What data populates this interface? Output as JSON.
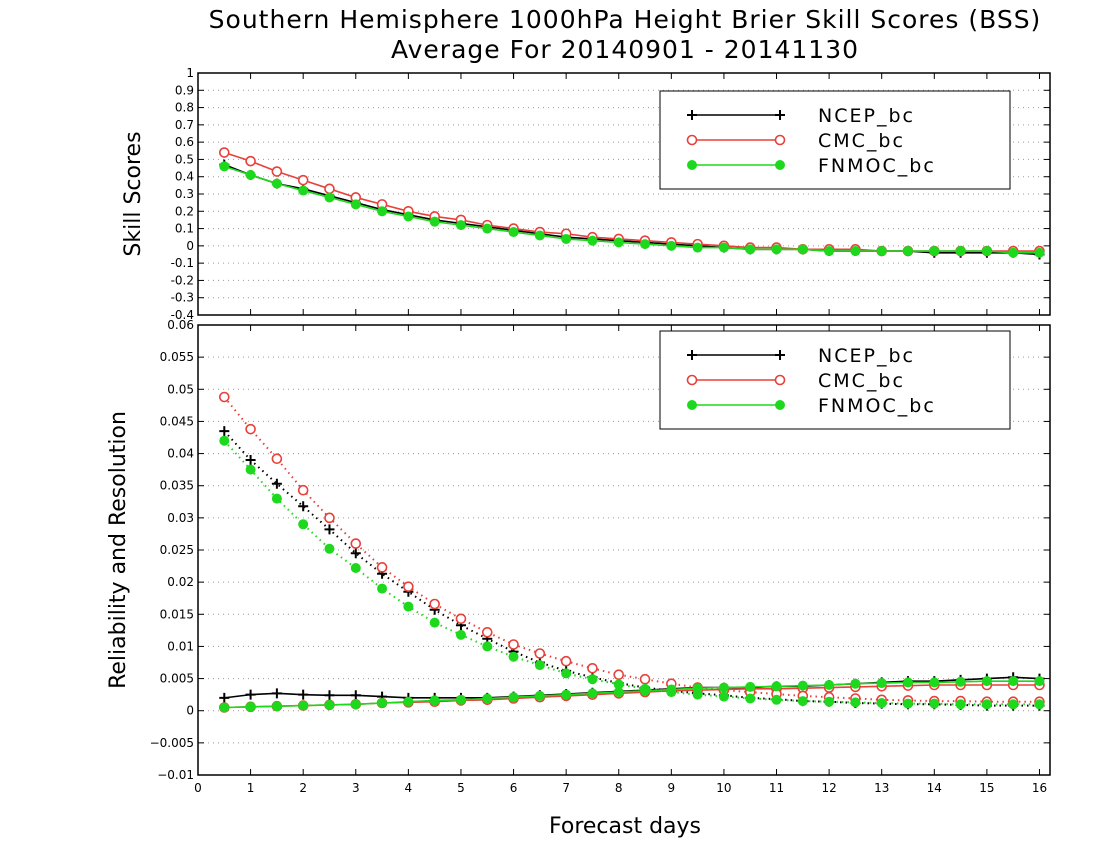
{
  "title": "Southern Hemisphere 1000hPa Height Brier Skill Scores (BSS)",
  "subtitle": "Average For 20140901 - 20141130",
  "xlabel": "Forecast days",
  "colors": {
    "NCEP_bc": "#000000",
    "CMC_bc": "#e8403a",
    "FNMOC_bc": "#1ed81e"
  },
  "chart_data": [
    {
      "type": "line",
      "ylabel": "Skill Scores",
      "xlim": [
        0,
        16.2
      ],
      "ylim": [
        -0.4,
        1
      ],
      "xticks": [
        "0",
        "1",
        "2",
        "3",
        "4",
        "5",
        "6",
        "7",
        "8",
        "9",
        "10",
        "11",
        "12",
        "13",
        "14",
        "15",
        "16"
      ],
      "yticks": [
        "-0.4",
        "-0.3",
        "-0.2",
        "-0.1",
        "0",
        "0.1",
        "0.2",
        "0.3",
        "0.4",
        "0.5",
        "0.6",
        "0.7",
        "0.8",
        "0.9",
        "1"
      ],
      "grid": true,
      "legend_position": "top-right",
      "x": [
        0.5,
        1,
        1.5,
        2,
        2.5,
        3,
        3.5,
        4,
        4.5,
        5,
        5.5,
        6,
        6.5,
        7,
        7.5,
        8,
        8.5,
        9,
        9.5,
        10,
        10.5,
        11,
        11.5,
        12,
        12.5,
        13,
        13.5,
        14,
        14.5,
        15,
        15.5,
        16
      ],
      "series": [
        {
          "name": "NCEP_bc",
          "marker": "plus",
          "linestyle": "solid",
          "values": [
            0.47,
            0.41,
            0.36,
            0.33,
            0.29,
            0.25,
            0.21,
            0.18,
            0.15,
            0.13,
            0.11,
            0.09,
            0.07,
            0.05,
            0.04,
            0.03,
            0.02,
            0.01,
            0.0,
            -0.01,
            -0.02,
            -0.02,
            -0.02,
            -0.03,
            -0.03,
            -0.03,
            -0.03,
            -0.04,
            -0.04,
            -0.04,
            -0.04,
            -0.05
          ]
        },
        {
          "name": "CMC_bc",
          "marker": "open-circle",
          "linestyle": "solid",
          "values": [
            0.54,
            0.49,
            0.43,
            0.38,
            0.33,
            0.28,
            0.24,
            0.2,
            0.17,
            0.15,
            0.12,
            0.1,
            0.08,
            0.07,
            0.05,
            0.04,
            0.03,
            0.02,
            0.01,
            0.0,
            -0.01,
            -0.01,
            -0.02,
            -0.02,
            -0.02,
            -0.03,
            -0.03,
            -0.03,
            -0.03,
            -0.03,
            -0.03,
            -0.03
          ]
        },
        {
          "name": "FNMOC_bc",
          "marker": "filled-circle",
          "linestyle": "solid",
          "values": [
            0.46,
            0.41,
            0.36,
            0.32,
            0.28,
            0.24,
            0.2,
            0.17,
            0.14,
            0.12,
            0.1,
            0.08,
            0.06,
            0.04,
            0.03,
            0.02,
            0.01,
            0.0,
            -0.01,
            -0.01,
            -0.02,
            -0.02,
            -0.02,
            -0.03,
            -0.03,
            -0.03,
            -0.03,
            -0.03,
            -0.03,
            -0.03,
            -0.04,
            -0.04
          ]
        }
      ]
    },
    {
      "type": "line",
      "ylabel": "Reliability and Resolution",
      "xlim": [
        0,
        16.2
      ],
      "ylim": [
        -0.01,
        0.06
      ],
      "xticks": [
        "0",
        "1",
        "2",
        "3",
        "4",
        "5",
        "6",
        "7",
        "8",
        "9",
        "10",
        "11",
        "12",
        "13",
        "14",
        "15",
        "16"
      ],
      "yticks": [
        "−0.01",
        "−0.005",
        "0",
        "0.005",
        "0.01",
        "0.015",
        "0.02",
        "0.025",
        "0.03",
        "0.035",
        "0.04",
        "0.045",
        "0.05",
        "0.055",
        "0.06"
      ],
      "grid": true,
      "legend_position": "top-right",
      "x": [
        0.5,
        1,
        1.5,
        2,
        2.5,
        3,
        3.5,
        4,
        4.5,
        5,
        5.5,
        6,
        6.5,
        7,
        7.5,
        8,
        8.5,
        9,
        9.5,
        10,
        10.5,
        11,
        11.5,
        12,
        12.5,
        13,
        13.5,
        14,
        14.5,
        15,
        15.5,
        16
      ],
      "series": [
        {
          "name": "NCEP_bc",
          "role": "reliability",
          "marker": "plus",
          "linestyle": "solid",
          "values": [
            0.002,
            0.0025,
            0.0027,
            0.0025,
            0.0024,
            0.0024,
            0.0022,
            0.002,
            0.002,
            0.002,
            0.002,
            0.0022,
            0.0024,
            0.0026,
            0.0028,
            0.003,
            0.0032,
            0.0034,
            0.0036,
            0.0036,
            0.0036,
            0.0038,
            0.0038,
            0.004,
            0.0042,
            0.0044,
            0.0046,
            0.0046,
            0.0048,
            0.005,
            0.0052,
            0.005
          ]
        },
        {
          "name": "NCEP_bc",
          "role": "resolution",
          "marker": "plus",
          "linestyle": "dotted",
          "values": [
            0.0435,
            0.039,
            0.0353,
            0.0318,
            0.0282,
            0.0245,
            0.0213,
            0.0185,
            0.0157,
            0.0133,
            0.0112,
            0.0092,
            0.0075,
            0.0062,
            0.0052,
            0.0043,
            0.0036,
            0.0031,
            0.0027,
            0.0024,
            0.002,
            0.0018,
            0.0015,
            0.0014,
            0.0012,
            0.0011,
            0.001,
            0.001,
            0.0009,
            0.0008,
            0.0008,
            0.0008
          ]
        },
        {
          "name": "CMC_bc",
          "role": "reliability",
          "marker": "open-circle",
          "linestyle": "solid",
          "values": [
            0.0005,
            0.0006,
            0.0007,
            0.0008,
            0.0009,
            0.001,
            0.0012,
            0.0013,
            0.0014,
            0.0016,
            0.0017,
            0.0019,
            0.0021,
            0.0023,
            0.0025,
            0.0027,
            0.0029,
            0.0031,
            0.0032,
            0.0033,
            0.0034,
            0.0034,
            0.0035,
            0.0036,
            0.0037,
            0.0038,
            0.0039,
            0.004,
            0.004,
            0.004,
            0.004,
            0.004
          ]
        },
        {
          "name": "CMC_bc",
          "role": "resolution",
          "marker": "open-circle",
          "linestyle": "dotted",
          "values": [
            0.0488,
            0.0438,
            0.0392,
            0.0343,
            0.03,
            0.026,
            0.0223,
            0.0193,
            0.0166,
            0.0143,
            0.0122,
            0.0103,
            0.0089,
            0.0077,
            0.0066,
            0.0056,
            0.0049,
            0.0042,
            0.0036,
            0.0032,
            0.0029,
            0.0026,
            0.0023,
            0.0021,
            0.0019,
            0.0017,
            0.0016,
            0.0015,
            0.0015,
            0.0014,
            0.0014,
            0.0014
          ]
        },
        {
          "name": "FNMOC_bc",
          "role": "reliability",
          "marker": "filled-circle",
          "linestyle": "solid",
          "values": [
            0.0005,
            0.0006,
            0.0007,
            0.0008,
            0.0009,
            0.001,
            0.0012,
            0.0014,
            0.0016,
            0.0017,
            0.0019,
            0.0021,
            0.0023,
            0.0025,
            0.0027,
            0.0029,
            0.0031,
            0.0033,
            0.0035,
            0.0036,
            0.0037,
            0.0038,
            0.0039,
            0.004,
            0.0042,
            0.0043,
            0.0044,
            0.0044,
            0.0045,
            0.0046,
            0.0046,
            0.0046
          ]
        },
        {
          "name": "FNMOC_bc",
          "role": "resolution",
          "marker": "filled-circle",
          "linestyle": "dotted",
          "values": [
            0.042,
            0.0375,
            0.033,
            0.029,
            0.0252,
            0.0222,
            0.019,
            0.0162,
            0.0137,
            0.0118,
            0.01,
            0.0084,
            0.0071,
            0.0058,
            0.0049,
            0.0041,
            0.0034,
            0.0029,
            0.0025,
            0.0022,
            0.0019,
            0.0017,
            0.0015,
            0.0014,
            0.0013,
            0.0012,
            0.0011,
            0.0011,
            0.001,
            0.001,
            0.001,
            0.001
          ]
        }
      ]
    }
  ]
}
